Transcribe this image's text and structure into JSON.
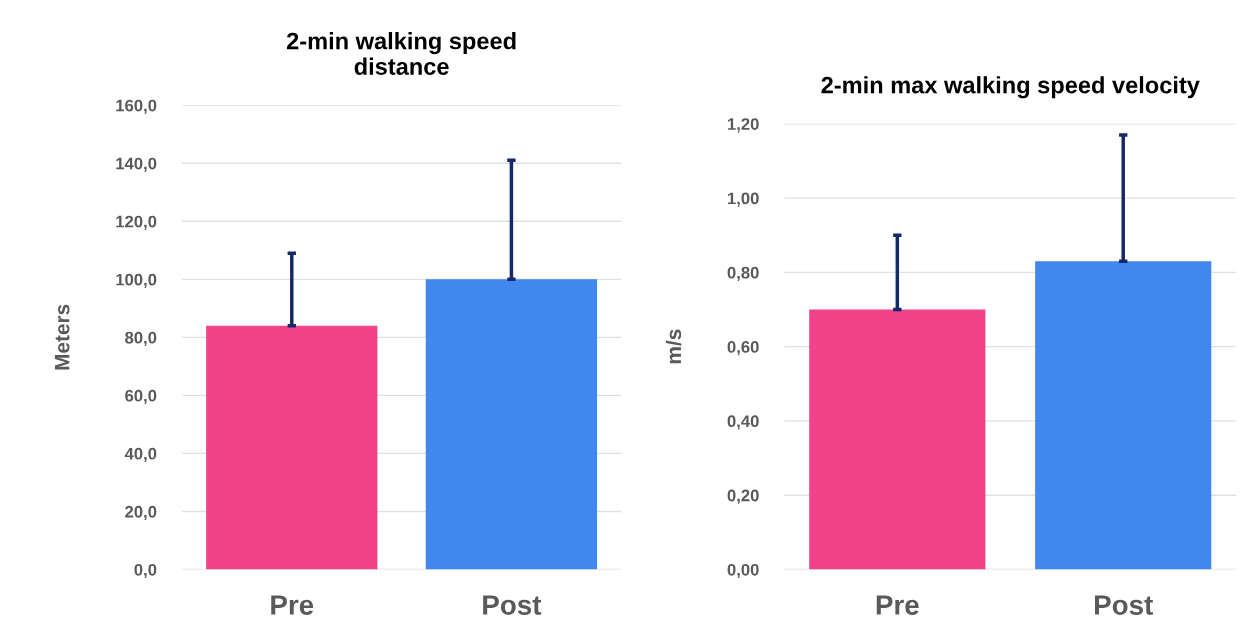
{
  "chart_data": [
    {
      "type": "bar",
      "title": "2-min walking speed\ndistance",
      "ylabel": "Meters",
      "categories": [
        "Pre",
        "Post"
      ],
      "values": [
        84,
        100
      ],
      "colors": [
        "#f2428a",
        "#4287ee"
      ],
      "errors": [
        [
          84,
          109
        ],
        [
          100,
          141
        ]
      ],
      "ylim": [
        0,
        160
      ],
      "yticks": [
        {
          "value": 0,
          "label": "0,0"
        },
        {
          "value": 20,
          "label": "20,0"
        },
        {
          "value": 40,
          "label": "40,0"
        },
        {
          "value": 60,
          "label": "60,0"
        },
        {
          "value": 80,
          "label": "80,0"
        },
        {
          "value": 100,
          "label": "100,0"
        },
        {
          "value": 120,
          "label": "120,0"
        },
        {
          "value": 140,
          "label": "140,0"
        },
        {
          "value": 160,
          "label": "160,0"
        }
      ],
      "grid": "y",
      "legend": false
    },
    {
      "type": "bar",
      "title": "2-min max walking speed velocity",
      "ylabel": "m/s",
      "categories": [
        "Pre",
        "Post"
      ],
      "values": [
        0.7,
        0.83
      ],
      "colors": [
        "#f2428a",
        "#4287ee"
      ],
      "errors": [
        [
          0.7,
          0.9
        ],
        [
          0.83,
          1.17
        ]
      ],
      "ylim": [
        0,
        1.2
      ],
      "yticks": [
        {
          "value": 0,
          "label": "0,00"
        },
        {
          "value": 0.2,
          "label": "0,20"
        },
        {
          "value": 0.4,
          "label": "0,40"
        },
        {
          "value": 0.6,
          "label": "0,60"
        },
        {
          "value": 0.8,
          "label": "0,80"
        },
        {
          "value": 1.0,
          "label": "1,00"
        },
        {
          "value": 1.2,
          "label": "1,20"
        }
      ],
      "grid": "y",
      "legend": false
    }
  ]
}
